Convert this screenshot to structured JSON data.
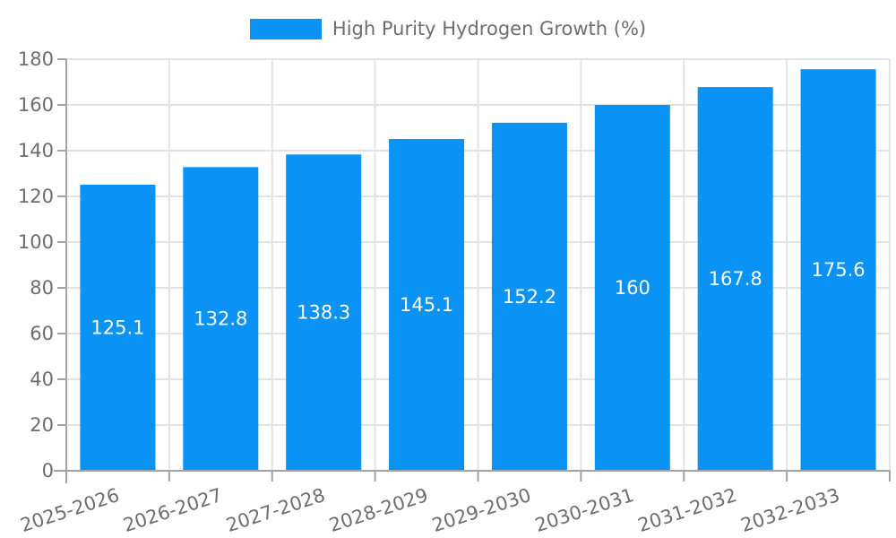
{
  "chart_data": {
    "type": "bar",
    "title": "",
    "legend": {
      "label": "High Purity Hydrogen Growth (%)",
      "position": "top"
    },
    "categories": [
      "2025-2026",
      "2026-2027",
      "2027-2028",
      "2028-2029",
      "2029-2030",
      "2030-2031",
      "2031-2032",
      "2032-2033"
    ],
    "values": [
      125.1,
      132.8,
      138.3,
      145.1,
      152.2,
      160,
      167.8,
      175.6
    ],
    "value_labels": [
      "125.1",
      "132.8",
      "138.3",
      "145.1",
      "152.2",
      "160",
      "167.8",
      "175.6"
    ],
    "xlabel": "",
    "ylabel": "",
    "ylim": [
      0,
      180
    ],
    "yticks": [
      0,
      20,
      40,
      60,
      80,
      100,
      120,
      140,
      160,
      180
    ],
    "grid": true,
    "x_label_rotation_deg": -18,
    "colors": {
      "bar": "#0b92f5",
      "bar_label_text": "#ffffff",
      "axis_text": "#6e6e6e",
      "grid_line": "#e3e3e3",
      "axis_line": "#a3a3a3",
      "background": "#ffffff"
    }
  }
}
